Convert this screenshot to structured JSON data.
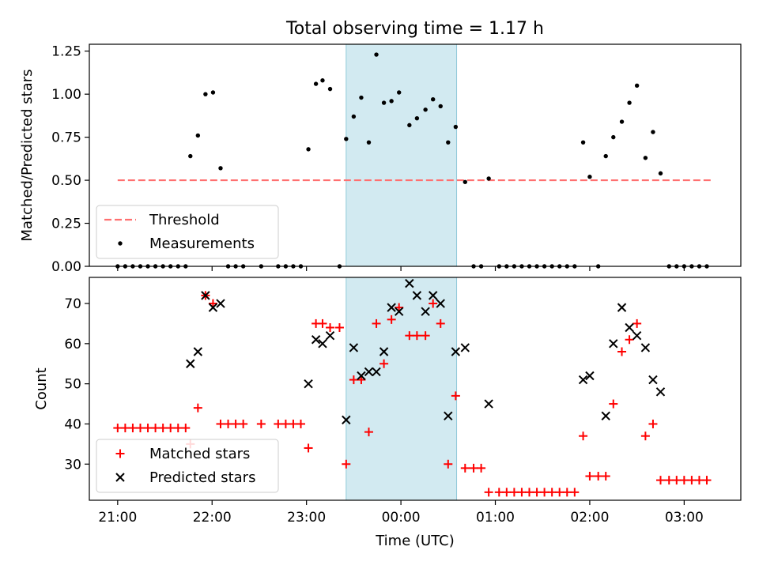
{
  "figure": {
    "title": "Total observing time = 1.17 h"
  },
  "chart_data": [
    {
      "type": "scatter",
      "panel": "top",
      "ylabel": "Matched/Predicted stars",
      "ylim": [
        0,
        1.29
      ],
      "yticks": [
        0.0,
        0.25,
        0.5,
        0.75,
        1.0,
        1.25
      ],
      "ytick_labels": [
        "0.00",
        "0.25",
        "0.50",
        "0.75",
        "1.00",
        "1.25"
      ],
      "threshold": {
        "name": "Threshold",
        "value": 0.5,
        "x_start": 21.0,
        "x_end": 27.3,
        "color": "#ff7070"
      },
      "series": [
        {
          "name": "Measurements",
          "color": "#000000",
          "points": [
            [
              21.0,
              0
            ],
            [
              21.08,
              0
            ],
            [
              21.16,
              0
            ],
            [
              21.24,
              0
            ],
            [
              21.32,
              0
            ],
            [
              21.4,
              0
            ],
            [
              21.48,
              0
            ],
            [
              21.56,
              0
            ],
            [
              21.64,
              0
            ],
            [
              21.72,
              0
            ],
            [
              21.77,
              0.64
            ],
            [
              21.85,
              0.76
            ],
            [
              21.93,
              1.0
            ],
            [
              22.01,
              1.01
            ],
            [
              22.09,
              0.57
            ],
            [
              22.17,
              0
            ],
            [
              22.25,
              0
            ],
            [
              22.33,
              0
            ],
            [
              22.52,
              0
            ],
            [
              22.7,
              0
            ],
            [
              22.78,
              0
            ],
            [
              22.86,
              0
            ],
            [
              22.94,
              0
            ],
            [
              23.02,
              0.68
            ],
            [
              23.1,
              1.06
            ],
            [
              23.17,
              1.08
            ],
            [
              23.25,
              1.03
            ],
            [
              23.35,
              0
            ],
            [
              23.42,
              0.74
            ],
            [
              23.5,
              0.87
            ],
            [
              23.58,
              0.98
            ],
            [
              23.66,
              0.72
            ],
            [
              23.74,
              1.23
            ],
            [
              23.82,
              0.95
            ],
            [
              23.9,
              0.96
            ],
            [
              23.98,
              1.01
            ],
            [
              24.09,
              0.82
            ],
            [
              24.17,
              0.86
            ],
            [
              24.26,
              0.91
            ],
            [
              24.34,
              0.97
            ],
            [
              24.42,
              0.93
            ],
            [
              24.5,
              0.72
            ],
            [
              24.58,
              0.81
            ],
            [
              24.68,
              0.49
            ],
            [
              24.77,
              0
            ],
            [
              24.85,
              0
            ],
            [
              24.93,
              0.51
            ],
            [
              25.04,
              0
            ],
            [
              25.12,
              0
            ],
            [
              25.2,
              0
            ],
            [
              25.28,
              0
            ],
            [
              25.36,
              0
            ],
            [
              25.44,
              0
            ],
            [
              25.52,
              0
            ],
            [
              25.6,
              0
            ],
            [
              25.68,
              0
            ],
            [
              25.76,
              0
            ],
            [
              25.84,
              0
            ],
            [
              25.93,
              0.72
            ],
            [
              26.0,
              0.52
            ],
            [
              26.09,
              0
            ],
            [
              26.17,
              0.64
            ],
            [
              26.25,
              0.75
            ],
            [
              26.34,
              0.84
            ],
            [
              26.42,
              0.95
            ],
            [
              26.5,
              1.05
            ],
            [
              26.59,
              0.63
            ],
            [
              26.67,
              0.78
            ],
            [
              26.75,
              0.54
            ],
            [
              26.84,
              0
            ],
            [
              26.92,
              0
            ],
            [
              27.0,
              0
            ],
            [
              27.08,
              0
            ],
            [
              27.16,
              0
            ],
            [
              27.24,
              0
            ]
          ]
        }
      ],
      "legend": {
        "placement": "lower-left",
        "entries": [
          "Threshold",
          "Measurements"
        ]
      }
    },
    {
      "type": "scatter",
      "panel": "bottom",
      "ylabel": "Count",
      "xlabel": "Time (UTC)",
      "ylim": [
        21,
        76.5
      ],
      "yticks": [
        30,
        40,
        50,
        60,
        70
      ],
      "ytick_labels": [
        "30",
        "40",
        "50",
        "60",
        "70"
      ],
      "xlim": [
        20.7,
        27.6
      ],
      "xticks": [
        21,
        22,
        23,
        24,
        25,
        26,
        27
      ],
      "xtick_labels": [
        "21:00",
        "22:00",
        "23:00",
        "00:00",
        "01:00",
        "02:00",
        "03:00"
      ],
      "shaded_interval": {
        "start": 23.42,
        "end": 24.59,
        "color": "#add8e6"
      },
      "series": [
        {
          "name": "Matched stars",
          "marker": "+",
          "color": "#ff0000",
          "points": [
            [
              21.0,
              39
            ],
            [
              21.08,
              39
            ],
            [
              21.16,
              39
            ],
            [
              21.24,
              39
            ],
            [
              21.32,
              39
            ],
            [
              21.4,
              39
            ],
            [
              21.48,
              39
            ],
            [
              21.56,
              39
            ],
            [
              21.64,
              39
            ],
            [
              21.72,
              39
            ],
            [
              21.77,
              35
            ],
            [
              21.85,
              44
            ],
            [
              21.93,
              72
            ],
            [
              22.01,
              70
            ],
            [
              22.09,
              40
            ],
            [
              22.17,
              40
            ],
            [
              22.25,
              40
            ],
            [
              22.33,
              40
            ],
            [
              22.52,
              40
            ],
            [
              22.7,
              40
            ],
            [
              22.78,
              40
            ],
            [
              22.86,
              40
            ],
            [
              22.94,
              40
            ],
            [
              23.02,
              34
            ],
            [
              23.1,
              65
            ],
            [
              23.17,
              65
            ],
            [
              23.25,
              64
            ],
            [
              23.35,
              64
            ],
            [
              23.42,
              30
            ],
            [
              23.5,
              51
            ],
            [
              23.58,
              51
            ],
            [
              23.66,
              38
            ],
            [
              23.74,
              65
            ],
            [
              23.82,
              55
            ],
            [
              23.9,
              66
            ],
            [
              23.98,
              69
            ],
            [
              24.09,
              62
            ],
            [
              24.17,
              62
            ],
            [
              24.26,
              62
            ],
            [
              24.34,
              70
            ],
            [
              24.42,
              65
            ],
            [
              24.5,
              30
            ],
            [
              24.58,
              47
            ],
            [
              24.68,
              29
            ],
            [
              24.77,
              29
            ],
            [
              24.85,
              29
            ],
            [
              24.93,
              23
            ],
            [
              25.04,
              23
            ],
            [
              25.12,
              23
            ],
            [
              25.2,
              23
            ],
            [
              25.28,
              23
            ],
            [
              25.36,
              23
            ],
            [
              25.44,
              23
            ],
            [
              25.52,
              23
            ],
            [
              25.6,
              23
            ],
            [
              25.68,
              23
            ],
            [
              25.76,
              23
            ],
            [
              25.84,
              23
            ],
            [
              25.93,
              37
            ],
            [
              26.0,
              27
            ],
            [
              26.09,
              27
            ],
            [
              26.17,
              27
            ],
            [
              26.25,
              45
            ],
            [
              26.34,
              58
            ],
            [
              26.42,
              61
            ],
            [
              26.5,
              65
            ],
            [
              26.59,
              37
            ],
            [
              26.67,
              40
            ],
            [
              26.75,
              26
            ],
            [
              26.84,
              26
            ],
            [
              26.92,
              26
            ],
            [
              27.0,
              26
            ],
            [
              27.08,
              26
            ],
            [
              27.16,
              26
            ],
            [
              27.24,
              26
            ]
          ]
        },
        {
          "name": "Predicted stars",
          "marker": "x",
          "color": "#000000",
          "points": [
            [
              21.77,
              55
            ],
            [
              21.85,
              58
            ],
            [
              21.93,
              72
            ],
            [
              22.01,
              69
            ],
            [
              22.09,
              70
            ],
            [
              23.02,
              50
            ],
            [
              23.1,
              61
            ],
            [
              23.17,
              60
            ],
            [
              23.25,
              62
            ],
            [
              23.42,
              41
            ],
            [
              23.5,
              59
            ],
            [
              23.58,
              52
            ],
            [
              23.66,
              53
            ],
            [
              23.74,
              53
            ],
            [
              23.82,
              58
            ],
            [
              23.9,
              69
            ],
            [
              23.98,
              68
            ],
            [
              24.09,
              75
            ],
            [
              24.17,
              72
            ],
            [
              24.26,
              68
            ],
            [
              24.34,
              72
            ],
            [
              24.42,
              70
            ],
            [
              24.5,
              42
            ],
            [
              24.58,
              58
            ],
            [
              24.68,
              59
            ],
            [
              24.93,
              45
            ],
            [
              25.93,
              51
            ],
            [
              26.0,
              52
            ],
            [
              26.17,
              42
            ],
            [
              26.25,
              60
            ],
            [
              26.34,
              69
            ],
            [
              26.42,
              64
            ],
            [
              26.5,
              62
            ],
            [
              26.59,
              59
            ],
            [
              26.67,
              51
            ],
            [
              26.75,
              48
            ]
          ]
        }
      ],
      "legend": {
        "placement": "lower-left",
        "entries": [
          "Matched stars",
          "Predicted stars"
        ]
      }
    }
  ]
}
